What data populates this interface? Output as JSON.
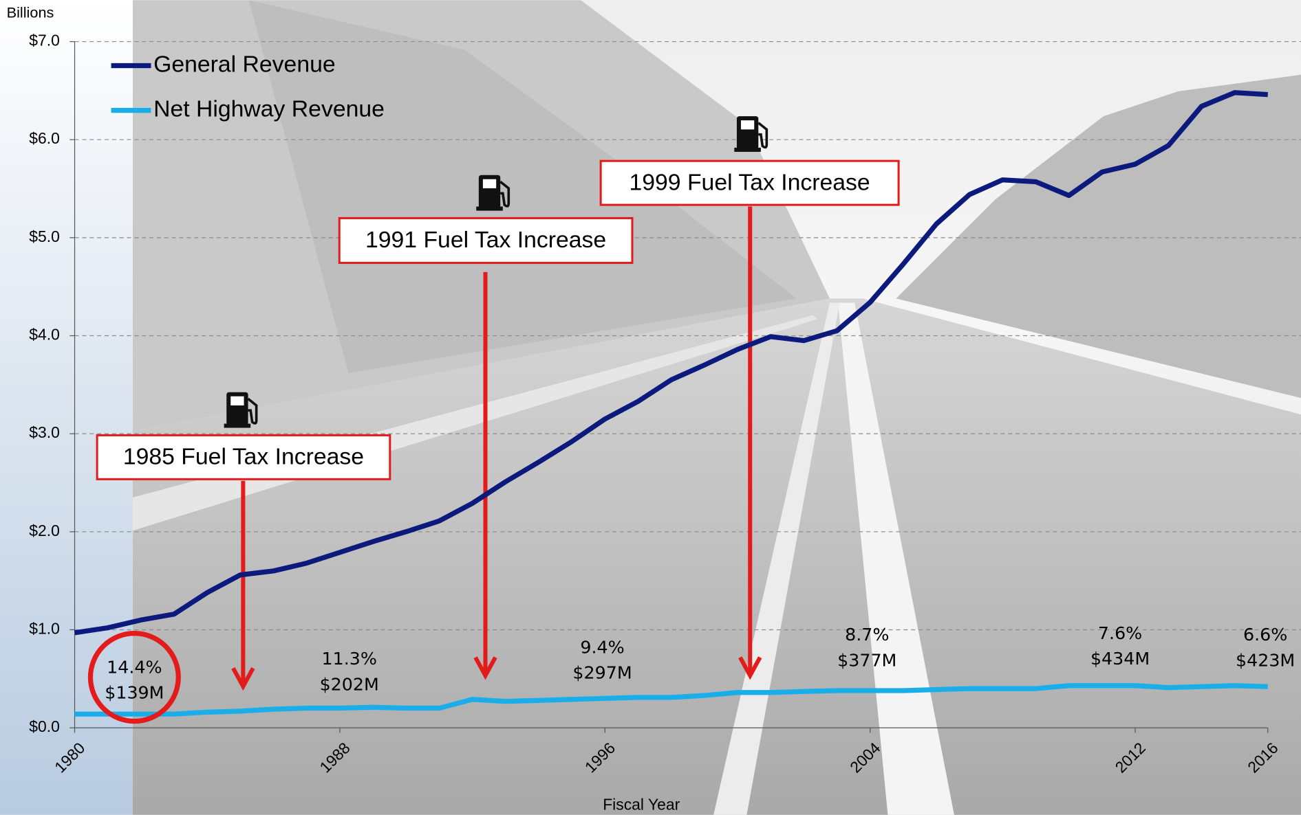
{
  "chart_data": {
    "type": "line",
    "y_axis_title": "Billions",
    "x_axis_title": "Fiscal Year",
    "x": [
      1980,
      1981,
      1982,
      1983,
      1984,
      1985,
      1986,
      1987,
      1988,
      1989,
      1990,
      1991,
      1992,
      1993,
      1994,
      1995,
      1996,
      1997,
      1998,
      1999,
      2000,
      2001,
      2002,
      2003,
      2004,
      2005,
      2006,
      2007,
      2008,
      2009,
      2010,
      2011,
      2012,
      2013,
      2014,
      2015,
      2016
    ],
    "series": [
      {
        "name": "General Revenue",
        "color": "#0b1a7c",
        "values": [
          0.97,
          1.02,
          1.1,
          1.16,
          1.38,
          1.56,
          1.6,
          1.68,
          1.79,
          1.9,
          2.0,
          2.11,
          2.29,
          2.51,
          2.71,
          2.92,
          3.15,
          3.33,
          3.55,
          3.7,
          3.86,
          3.99,
          3.95,
          4.05,
          4.34,
          4.73,
          5.14,
          5.44,
          5.59,
          5.57,
          5.43,
          5.67,
          5.75,
          5.94,
          6.34,
          6.48,
          6.46
        ]
      },
      {
        "name": "Net Highway Revenue",
        "color": "#19aeea",
        "values": [
          0.14,
          0.14,
          0.14,
          0.14,
          0.16,
          0.17,
          0.19,
          0.2,
          0.2,
          0.21,
          0.2,
          0.2,
          0.29,
          0.27,
          0.28,
          0.29,
          0.3,
          0.31,
          0.31,
          0.33,
          0.36,
          0.36,
          0.37,
          0.38,
          0.38,
          0.38,
          0.39,
          0.4,
          0.4,
          0.4,
          0.43,
          0.43,
          0.43,
          0.41,
          0.42,
          0.43,
          0.42
        ]
      }
    ],
    "xlim": [
      1980,
      2016
    ],
    "xticks": [
      1980,
      1988,
      1996,
      2004,
      2012,
      2016
    ],
    "ylim": [
      0,
      7
    ],
    "yticks": [
      {
        "value": 0,
        "label": "$0.0"
      },
      {
        "value": 1,
        "label": "$1.0"
      },
      {
        "value": 2,
        "label": "$2.0"
      },
      {
        "value": 3,
        "label": "$3.0"
      },
      {
        "value": 4,
        "label": "$4.0"
      },
      {
        "value": 5,
        "label": "$5.0"
      },
      {
        "value": 6,
        "label": "$6.0"
      },
      {
        "value": 7,
        "label": "$7.0"
      }
    ],
    "grid": true,
    "legend": "top-left",
    "annotations": [
      "1985 Fuel Tax Increase",
      "1991 Fuel Tax Increase",
      "1999 Fuel Tax Increase"
    ],
    "callouts": [
      {
        "share": "14.4%",
        "amount": "$139M"
      },
      {
        "share": "11.3%",
        "amount": "$202M"
      },
      {
        "share": "9.4%",
        "amount": "$297M"
      },
      {
        "share": "8.7%",
        "amount": "$377M"
      },
      {
        "share": "7.6%",
        "amount": "$434M"
      },
      {
        "share": "6.6%",
        "amount": "$423M"
      }
    ]
  }
}
